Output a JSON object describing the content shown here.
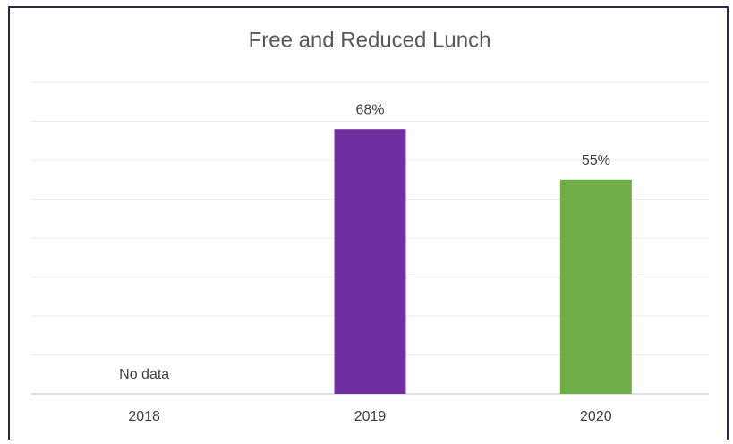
{
  "chart_data": {
    "type": "bar",
    "title": "Free and Reduced Lunch",
    "categories": [
      "2018",
      "2019",
      "2020"
    ],
    "values": [
      null,
      68,
      55
    ],
    "value_labels": [
      "No data",
      "68%",
      "55%"
    ],
    "colors": [
      "#7030a0",
      "#7030a0",
      "#70ad47"
    ],
    "ylim": [
      0,
      80
    ],
    "yticks": [
      0,
      10,
      20,
      30,
      40,
      50,
      60,
      70,
      80
    ],
    "grid": true
  }
}
